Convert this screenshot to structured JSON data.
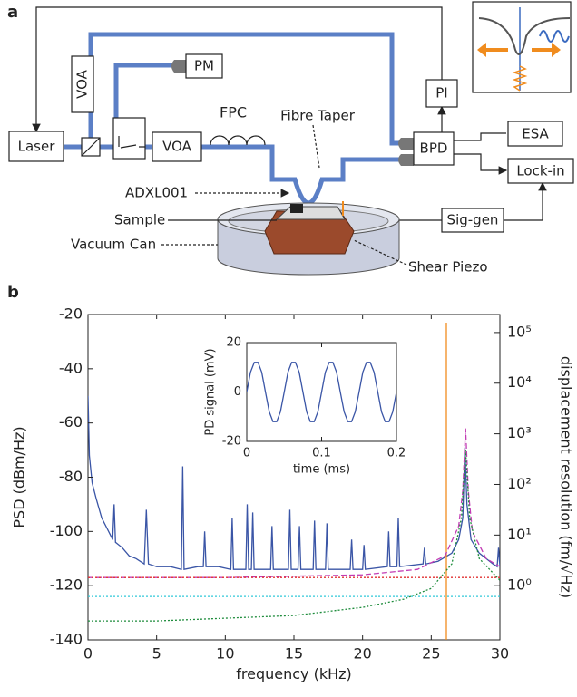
{
  "diagram": {
    "label": "a",
    "laser": "Laser",
    "voa_1": "VOA",
    "pm": "PM",
    "voa_2": "VOA",
    "fpc": "FPC",
    "fibre_taper": "Fibre Taper",
    "pi": "PI",
    "bpd": "BPD",
    "esa": "ESA",
    "lock_in": "Lock-in",
    "adxl": "ADXL001",
    "sample": "Sample",
    "vacuum_can": "Vacuum Can",
    "sig_gen": "Sig-gen",
    "shear_piezo": "Shear Piezo"
  },
  "panel_b_label": "b",
  "chart_data": [
    {
      "type": "line",
      "ylabel": "PSD (dBm/Hz)",
      "xlabel": "frequency (kHz)",
      "y2label": "displacement resolution (fm/√Hz)",
      "xlim": [
        0,
        30
      ],
      "xticks": [
        0,
        5,
        10,
        15,
        20,
        25,
        30
      ],
      "ylim": [
        -140,
        -20
      ],
      "yticks": [
        -140,
        -120,
        -100,
        -80,
        -60,
        -40,
        -20
      ],
      "y2lim": [
        0.085,
        227000
      ],
      "y2scale": "log",
      "y2ticks": [
        {
          "value": 1,
          "label": "10⁰"
        },
        {
          "value": 10,
          "label": "10¹"
        },
        {
          "value": 100,
          "label": "10²"
        },
        {
          "value": 1000,
          "label": "10³"
        },
        {
          "value": 10000,
          "label": "10⁴"
        },
        {
          "value": 100000,
          "label": "10⁵"
        }
      ],
      "series": [
        {
          "color": "#3a55a6",
          "style": "solid",
          "x": [
            0,
            0.1,
            0.3,
            0.6,
            1.0,
            1.5,
            1.8,
            1.9,
            2.0,
            2.5,
            3.0,
            3.5,
            4.1,
            4.25,
            4.4,
            5.0,
            6.0,
            6.8,
            6.9,
            7.0,
            8.0,
            8.4,
            8.5,
            8.6,
            9.5,
            10.4,
            10.5,
            10.6,
            11.5,
            11.6,
            11.7,
            11.9,
            12.0,
            12.1,
            13.3,
            13.4,
            13.5,
            14.6,
            14.7,
            14.8,
            15.3,
            15.4,
            15.5,
            16.4,
            16.5,
            16.6,
            17.3,
            17.4,
            17.5,
            18.5,
            19.1,
            19.2,
            19.3,
            20.0,
            20.1,
            20.2,
            21.8,
            21.9,
            22.0,
            22.5,
            22.6,
            22.7,
            24.4,
            24.5,
            24.6,
            25.5,
            26.5,
            27.0,
            27.3,
            27.45,
            27.6,
            27.9,
            28.5,
            29.0,
            29.5,
            29.8,
            29.9,
            30
          ],
          "values": [
            -50,
            -72,
            -82,
            -88,
            -95,
            -100,
            -103,
            -90,
            -104,
            -106,
            -109,
            -110,
            -112,
            -92,
            -112,
            -113,
            -113,
            -114,
            -76,
            -114,
            -113,
            -113,
            -100,
            -113,
            -113,
            -114,
            -95,
            -114,
            -114,
            -90,
            -114,
            -114,
            -93,
            -114,
            -114,
            -98,
            -114,
            -114,
            -92,
            -114,
            -114,
            -98,
            -114,
            -114,
            -96,
            -114,
            -114,
            -97,
            -114,
            -114,
            -114,
            -103,
            -114,
            -114,
            -105,
            -114,
            -113,
            -100,
            -113,
            -113,
            -95,
            -113,
            -112,
            -106,
            -112,
            -111,
            -108,
            -103,
            -95,
            -69,
            -90,
            -103,
            -108,
            -110,
            -112,
            -113,
            -106,
            -113
          ]
        },
        {
          "color": "#f08c1e",
          "style": "solid",
          "x": [
            26.1,
            26.1
          ],
          "values": [
            -140,
            -23
          ]
        },
        {
          "color": "#c23cb4",
          "style": "dashed",
          "x": [
            0,
            10,
            20,
            24,
            26,
            27,
            27.3,
            27.5,
            27.7,
            28,
            29,
            30
          ],
          "values": [
            -117,
            -117,
            -116,
            -114,
            -109,
            -98,
            -85,
            -62,
            -85,
            -100,
            -110,
            -113
          ]
        },
        {
          "color": "#e03030",
          "style": "dotted",
          "x": [
            0,
            30
          ],
          "values": [
            -117,
            -117
          ]
        },
        {
          "color": "#30c8d8",
          "style": "dotted",
          "x": [
            0,
            30
          ],
          "values": [
            -124,
            -124
          ]
        },
        {
          "color": "#1e8c3c",
          "style": "dotted",
          "x": [
            0,
            5,
            10,
            15,
            20,
            23,
            25,
            26.5,
            27.2,
            27.5,
            27.8,
            28.5,
            30
          ],
          "values": [
            -133,
            -133,
            -132,
            -131,
            -128,
            -125,
            -121,
            -112,
            -95,
            -70,
            -95,
            -110,
            -118
          ]
        }
      ]
    },
    {
      "type": "line",
      "ylabel": "PD signal (mV)",
      "xlabel": "time (ms)",
      "xlim": [
        0,
        0.2
      ],
      "xticks": [
        0,
        0.1,
        0.2
      ],
      "ylim": [
        -20,
        20
      ],
      "yticks": [
        -20,
        0,
        20
      ],
      "series": [
        {
          "color": "#3a55a6",
          "style": "solid",
          "x": [
            0,
            0.005,
            0.01,
            0.015,
            0.02,
            0.025,
            0.03,
            0.035,
            0.04,
            0.045,
            0.05,
            0.055,
            0.06,
            0.065,
            0.07,
            0.075,
            0.08,
            0.085,
            0.09,
            0.095,
            0.1,
            0.105,
            0.11,
            0.115,
            0.12,
            0.125,
            0.13,
            0.135,
            0.14,
            0.145,
            0.15,
            0.155,
            0.16,
            0.165,
            0.17,
            0.175,
            0.18,
            0.185,
            0.19,
            0.195,
            0.2
          ],
          "values": [
            0,
            8,
            12,
            12,
            8,
            0,
            -8,
            -12,
            -12,
            -8,
            0,
            8,
            12,
            12,
            8,
            0,
            -8,
            -12,
            -12,
            -8,
            0,
            8,
            12,
            12,
            8,
            0,
            -8,
            -12,
            -12,
            -8,
            0,
            8,
            12,
            12,
            8,
            0,
            -8,
            -12,
            -12,
            -8,
            0
          ]
        }
      ]
    }
  ]
}
